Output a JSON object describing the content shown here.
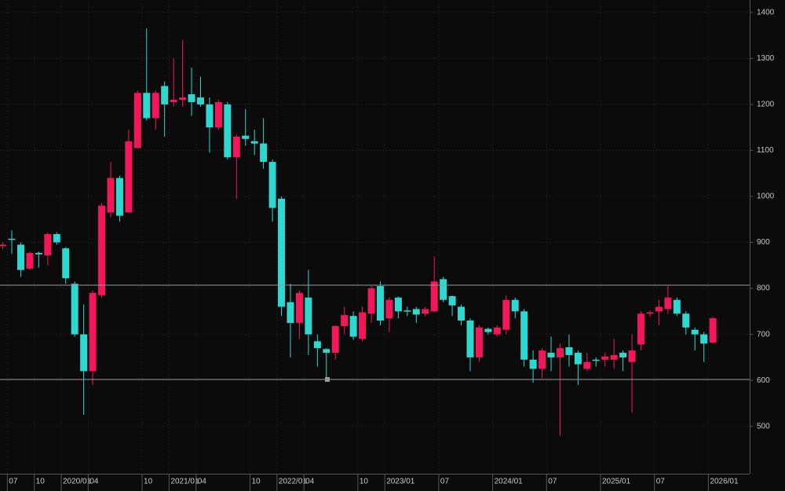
{
  "chart_data": {
    "type": "candlestick",
    "categories": [
      null,
      "07",
      null,
      null,
      "10",
      null,
      null,
      "2020/01",
      null,
      null,
      "04",
      null,
      null,
      null,
      null,
      null,
      "10",
      null,
      null,
      "2021/01",
      null,
      null,
      "04",
      null,
      null,
      null,
      null,
      null,
      "10",
      null,
      null,
      "2022/01",
      null,
      null,
      "04",
      null,
      null,
      null,
      null,
      null,
      "10",
      null,
      null,
      "2023/01",
      null,
      null,
      null,
      null,
      null,
      "07",
      null,
      null,
      null,
      null,
      null,
      "2024/01",
      null,
      null,
      null,
      null,
      null,
      "07",
      null,
      null,
      null,
      null,
      null,
      "2025/01",
      null,
      null,
      null,
      null,
      null,
      "07",
      null,
      null,
      null,
      null,
      null,
      "2026/01"
    ],
    "open": [
      892,
      908,
      895,
      843,
      877,
      872,
      918,
      887,
      810,
      700,
      620,
      785,
      965,
      1040,
      965,
      1105,
      1225,
      1170,
      1240,
      1205,
      1210,
      1222,
      1215,
      1200,
      1150,
      1200,
      1085,
      1132,
      1120,
      1115,
      1075,
      995,
      770,
      725,
      780,
      685,
      668,
      660,
      718,
      740,
      690,
      745,
      805,
      735,
      780,
      752,
      755,
      745,
      750,
      820,
      783,
      760,
      730,
      650,
      712,
      700,
      710,
      775,
      750,
      645,
      625,
      660,
      650,
      672,
      660,
      625,
      645,
      645,
      645,
      660,
      640,
      678,
      745,
      750,
      755,
      775,
      745,
      710,
      700,
      682
    ],
    "high": [
      900,
      926,
      900,
      880,
      880,
      922,
      922,
      890,
      815,
      765,
      795,
      985,
      1075,
      1045,
      1145,
      1230,
      1365,
      1230,
      1250,
      1300,
      1340,
      1280,
      1260,
      1215,
      1210,
      1205,
      1135,
      1190,
      1145,
      1170,
      1080,
      1000,
      810,
      795,
      840,
      700,
      670,
      720,
      760,
      750,
      760,
      805,
      815,
      780,
      782,
      760,
      760,
      760,
      870,
      825,
      785,
      765,
      735,
      720,
      715,
      720,
      785,
      780,
      755,
      665,
      670,
      695,
      680,
      700,
      665,
      660,
      650,
      660,
      690,
      665,
      700,
      750,
      752,
      775,
      805,
      780,
      750,
      715,
      705,
      738
    ],
    "low": [
      885,
      875,
      825,
      840,
      845,
      850,
      895,
      810,
      695,
      525,
      590,
      780,
      955,
      945,
      965,
      1105,
      1165,
      1145,
      1130,
      1195,
      1195,
      1175,
      1195,
      1095,
      1145,
      1080,
      995,
      1110,
      1090,
      1060,
      945,
      740,
      650,
      690,
      655,
      630,
      605,
      645,
      700,
      688,
      685,
      725,
      720,
      705,
      735,
      740,
      725,
      740,
      748,
      770,
      740,
      720,
      620,
      640,
      700,
      695,
      700,
      735,
      630,
      595,
      605,
      620,
      480,
      630,
      590,
      620,
      630,
      630,
      625,
      620,
      530,
      665,
      738,
      720,
      745,
      740,
      700,
      665,
      640,
      680
    ],
    "close": [
      895,
      906,
      840,
      877,
      874,
      918,
      900,
      822,
      700,
      620,
      790,
      980,
      1040,
      958,
      1120,
      1225,
      1170,
      1225,
      1200,
      1210,
      1215,
      1205,
      1200,
      1150,
      1205,
      1085,
      1130,
      1125,
      1115,
      1075,
      975,
      760,
      725,
      790,
      700,
      670,
      660,
      718,
      742,
      695,
      748,
      800,
      730,
      775,
      750,
      750,
      743,
      755,
      815,
      775,
      763,
      730,
      650,
      715,
      705,
      715,
      775,
      750,
      645,
      625,
      665,
      650,
      670,
      655,
      635,
      640,
      643,
      652,
      655,
      650,
      665,
      745,
      748,
      760,
      780,
      745,
      715,
      700,
      680,
      735
    ],
    "up_color": "#f2175a",
    "down_color": "#2ed8d0",
    "ylim": [
      397,
      1427
    ],
    "yticks": [
      500,
      600,
      700,
      800,
      900,
      1000,
      1100,
      1200,
      1300,
      1400
    ],
    "reference_lines": [
      807,
      602
    ],
    "grid": true
  }
}
